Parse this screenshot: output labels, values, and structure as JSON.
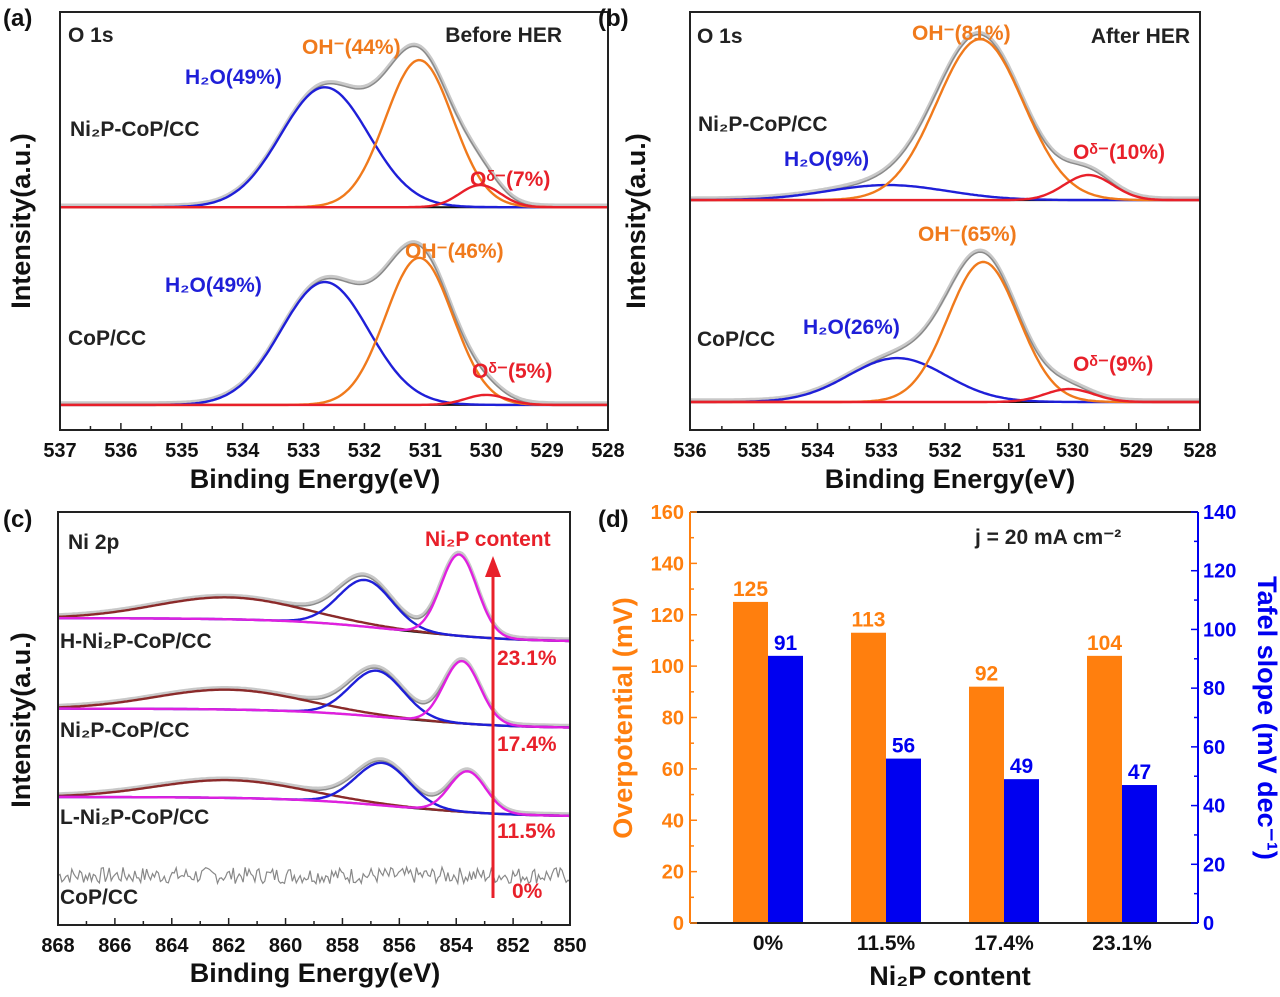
{
  "chart_data": [
    {
      "panel": "(a)",
      "type": "line",
      "title": "O 1s",
      "annotation": "Before HER",
      "xlabel": "Binding Energy(eV)",
      "ylabel": "Intensity(a.u.)",
      "xlim": [
        537,
        528
      ],
      "xticks": [
        537,
        536,
        535,
        534,
        533,
        532,
        531,
        530,
        529,
        528
      ],
      "ylim": [
        0,
        100
      ],
      "grid": false,
      "spectra": [
        {
          "name": "Ni₂P-CoP/CC",
          "baseline": 53.3,
          "components": [
            {
              "label": "H₂O(49%)",
              "center": 532.65,
              "fwhm": 1.7,
              "amplitude": 28.7,
              "color": "#1f1fd8"
            },
            {
              "label": "OH⁻(44%)",
              "center": 531.1,
              "fwhm": 1.3,
              "amplitude": 35.2,
              "color": "#f07a1c"
            },
            {
              "label": "Oᵟ⁻(7%)",
              "center": 530.1,
              "fwhm": 0.8,
              "amplitude": 5.3,
              "color": "#e8202a"
            }
          ]
        },
        {
          "name": "CoP/CC",
          "baseline": 6.0,
          "components": [
            {
              "label": "H₂O(49%)",
              "center": 532.65,
              "fwhm": 1.7,
              "amplitude": 29.4,
              "color": "#1f1fd8"
            },
            {
              "label": "OH⁻(46%)",
              "center": 531.1,
              "fwhm": 1.3,
              "amplitude": 35.2,
              "color": "#f07a1c"
            },
            {
              "label": "Oᵟ⁻(5%)",
              "center": 530.0,
              "fwhm": 0.8,
              "amplitude": 2.4,
              "color": "#e8202a"
            }
          ]
        }
      ]
    },
    {
      "panel": "(b)",
      "type": "line",
      "title": "O 1s",
      "annotation": "After HER",
      "xlabel": "Binding Energy(eV)",
      "ylabel": "Intensity(a.u.)",
      "xlim": [
        536,
        528
      ],
      "xticks": [
        536,
        535,
        534,
        533,
        532,
        531,
        530,
        529,
        528
      ],
      "ylim": [
        0,
        100
      ],
      "grid": false,
      "spectra": [
        {
          "name": "Ni₂P-CoP/CC",
          "baseline": 55.0,
          "components": [
            {
              "label": "H₂O(9%)",
              "center": 532.9,
              "fwhm": 2.2,
              "amplitude": 3.6,
              "color": "#1f1fd8"
            },
            {
              "label": "OH⁻(81%)",
              "center": 531.45,
              "fwhm": 1.6,
              "amplitude": 38.5,
              "color": "#f07a1c"
            },
            {
              "label": "Oᵟ⁻(10%)",
              "center": 529.75,
              "fwhm": 0.9,
              "amplitude": 6.0,
              "color": "#e8202a"
            }
          ]
        },
        {
          "name": "CoP/CC",
          "baseline": 6.7,
          "components": [
            {
              "label": "H₂O(26%)",
              "center": 532.75,
              "fwhm": 1.8,
              "amplitude": 10.5,
              "color": "#1f1fd8"
            },
            {
              "label": "OH⁻(65%)",
              "center": 531.4,
              "fwhm": 1.3,
              "amplitude": 33.5,
              "color": "#f07a1c"
            },
            {
              "label": "Oᵟ⁻(9%)",
              "center": 530.05,
              "fwhm": 0.9,
              "amplitude": 3.1,
              "color": "#e8202a"
            }
          ]
        }
      ]
    },
    {
      "panel": "(c)",
      "type": "line",
      "title": "Ni 2p",
      "annotation": "Ni₂P content",
      "xlabel": "Binding Energy(eV)",
      "ylabel": "Intensity(a.u.)",
      "xlim": [
        868,
        850
      ],
      "xticks": [
        868,
        866,
        864,
        862,
        860,
        858,
        856,
        854,
        852,
        850
      ],
      "ylim": [
        0,
        100
      ],
      "grid": false,
      "spectra": [
        {
          "name": "H-Ni₂P-CoP/CC",
          "content": "23.1%",
          "baseline_left": 74.3,
          "baseline_right": 68.5,
          "components": [
            {
              "center": 862.0,
              "fwhm": 6.0,
              "amplitude": 5.3,
              "color": "#8b2a2a"
            },
            {
              "center": 857.2,
              "fwhm": 2.2,
              "amplitude": 11.3,
              "color": "#1f1fd8"
            },
            {
              "center": 853.9,
              "fwhm": 1.5,
              "amplitude": 19.7,
              "color": "#e020e0"
            }
          ]
        },
        {
          "name": "Ni₂P-CoP/CC",
          "content": "17.4%",
          "baseline_left": 52.4,
          "baseline_right": 47.6,
          "components": [
            {
              "center": 862.0,
              "fwhm": 6.0,
              "amplitude": 4.8,
              "color": "#8b2a2a"
            },
            {
              "center": 856.8,
              "fwhm": 2.2,
              "amplitude": 11.1,
              "color": "#1f1fd8"
            },
            {
              "center": 853.8,
              "fwhm": 1.5,
              "amplitude": 15.1,
              "color": "#e020e0"
            }
          ]
        },
        {
          "name": "L-Ni₂P-CoP/CC",
          "content": "11.5%",
          "baseline_left": 31.0,
          "baseline_right": 26.2,
          "components": [
            {
              "center": 862.0,
              "fwhm": 6.0,
              "amplitude": 4.3,
              "color": "#8b2a2a"
            },
            {
              "center": 856.6,
              "fwhm": 2.2,
              "amplitude": 10.3,
              "color": "#1f1fd8"
            },
            {
              "center": 853.6,
              "fwhm": 1.5,
              "amplitude": 9.9,
              "color": "#e020e0"
            }
          ]
        },
        {
          "name": "CoP/CC",
          "content": "0%",
          "baseline_left": 12.0,
          "baseline_right": 12.0,
          "noise": true,
          "components": []
        }
      ]
    },
    {
      "panel": "(d)",
      "type": "bar",
      "annotation": "j = 20 mA cm⁻²",
      "categories": [
        "0%",
        "11.5%",
        "17.4%",
        "23.1%"
      ],
      "xlabel": "Ni₂P content",
      "ylabel_left": "Overpotential (mV)",
      "ylabel_right": "Tafel slope (mV dec⁻¹)",
      "ylim_left": [
        0,
        160
      ],
      "ylim_right": [
        0,
        140
      ],
      "yticks_left": [
        0,
        20,
        40,
        60,
        80,
        100,
        120,
        140,
        160
      ],
      "yticks_right": [
        0,
        20,
        40,
        60,
        80,
        100,
        120,
        140
      ],
      "grid": false,
      "series": [
        {
          "name": "Overpotential (mV)",
          "axis": "left",
          "values": [
            125,
            113,
            92,
            104
          ],
          "color": "#ff7f0e"
        },
        {
          "name": "Tafel slope (mV dec⁻¹)",
          "axis": "right",
          "values": [
            91,
            56,
            49,
            47
          ],
          "color": "#0000f0"
        }
      ]
    }
  ]
}
